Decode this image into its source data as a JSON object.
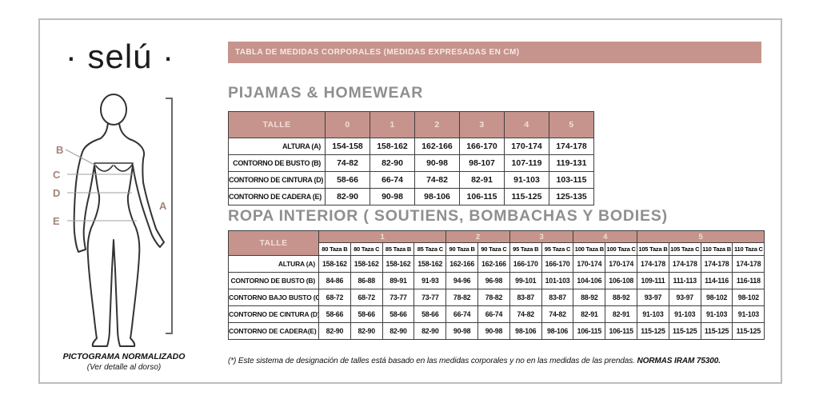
{
  "brand": {
    "logo_text": "· selú ·"
  },
  "title_bar": {
    "text": "TABLA DE MEDIDAS CORPORALES (MEDIDAS EXPRESADAS EN CM)"
  },
  "pictogram": {
    "labels": {
      "a": "A",
      "b": "B",
      "c": "C",
      "d": "D",
      "e": "E"
    },
    "caption_line1": "PICTOGRAMA NORMALIZADO",
    "caption_line2": "(Ver detalle al dorso)"
  },
  "pijamas": {
    "heading": "PIJAMAS & HOMEWEAR",
    "table": {
      "corner_label": "TALLE",
      "columns": [
        "0",
        "1",
        "2",
        "3",
        "4",
        "5"
      ],
      "rows": [
        {
          "label": "ALTURA (A)",
          "values": [
            "154-158",
            "158-162",
            "162-166",
            "166-170",
            "170-174",
            "174-178"
          ]
        },
        {
          "label": "CONTORNO DE BUSTO (B)",
          "values": [
            "74-82",
            "82-90",
            "90-98",
            "98-107",
            "107-119",
            "119-131"
          ]
        },
        {
          "label": "CONTORNO DE CINTURA (D)",
          "values": [
            "58-66",
            "66-74",
            "74-82",
            "82-91",
            "91-103",
            "103-115"
          ]
        },
        {
          "label": "CONTORNO DE CADERA (E)",
          "values": [
            "82-90",
            "90-98",
            "98-106",
            "106-115",
            "115-125",
            "125-135"
          ]
        }
      ]
    }
  },
  "ropa_interior": {
    "heading": "ROPA INTERIOR ( SOUTIENS, BOMBACHAS Y BODIES)",
    "table": {
      "corner_label": "TALLE",
      "groups": [
        {
          "label": "1",
          "span": 4
        },
        {
          "label": "2",
          "span": 2
        },
        {
          "label": "3",
          "span": 2
        },
        {
          "label": "4",
          "span": 2
        },
        {
          "label": "5",
          "span": 4
        }
      ],
      "subcolumns": [
        "80 Taza B",
        "80 Taza C",
        "85 Taza B",
        "85 Taza C",
        "90 Taza B",
        "90 Taza C",
        "95 Taza B",
        "95 Taza C",
        "100 Taza B",
        "100 Taza C",
        "105 Taza B",
        "105 Taza C",
        "110 Taza B",
        "110 Taza C"
      ],
      "rows": [
        {
          "label": "ALTURA (A)",
          "values": [
            "158-162",
            "158-162",
            "158-162",
            "158-162",
            "162-166",
            "162-166",
            "166-170",
            "166-170",
            "170-174",
            "170-174",
            "174-178",
            "174-178",
            "174-178",
            "174-178"
          ]
        },
        {
          "label": "CONTORNO DE BUSTO (B)",
          "values": [
            "84-86",
            "86-88",
            "89-91",
            "91-93",
            "94-96",
            "96-98",
            "99-101",
            "101-103",
            "104-106",
            "106-108",
            "109-111",
            "111-113",
            "114-116",
            "116-118"
          ]
        },
        {
          "label": "CONTORNO BAJO BUSTO (C)",
          "values": [
            "68-72",
            "68-72",
            "73-77",
            "73-77",
            "78-82",
            "78-82",
            "83-87",
            "83-87",
            "88-92",
            "88-92",
            "93-97",
            "93-97",
            "98-102",
            "98-102"
          ]
        },
        {
          "label": "CONTORNO DE CINTURA (D)",
          "values": [
            "58-66",
            "58-66",
            "58-66",
            "58-66",
            "66-74",
            "66-74",
            "74-82",
            "74-82",
            "82-91",
            "82-91",
            "91-103",
            "91-103",
            "91-103",
            "91-103"
          ]
        },
        {
          "label": "CONTORNO DE CADERA(E)",
          "values": [
            "82-90",
            "82-90",
            "82-90",
            "82-90",
            "90-98",
            "90-98",
            "98-106",
            "98-106",
            "106-115",
            "106-115",
            "115-125",
            "115-125",
            "115-125",
            "115-125"
          ]
        }
      ]
    }
  },
  "footnote": {
    "text": "(*) Este sistema de designación de talles está basado en las medidas corporales y no en las medidas de las prendas.",
    "bold_text": "NORMAS IRAM 75300."
  },
  "colors": {
    "rose": "#c6948d",
    "heading_gray": "#8f8f8f"
  }
}
